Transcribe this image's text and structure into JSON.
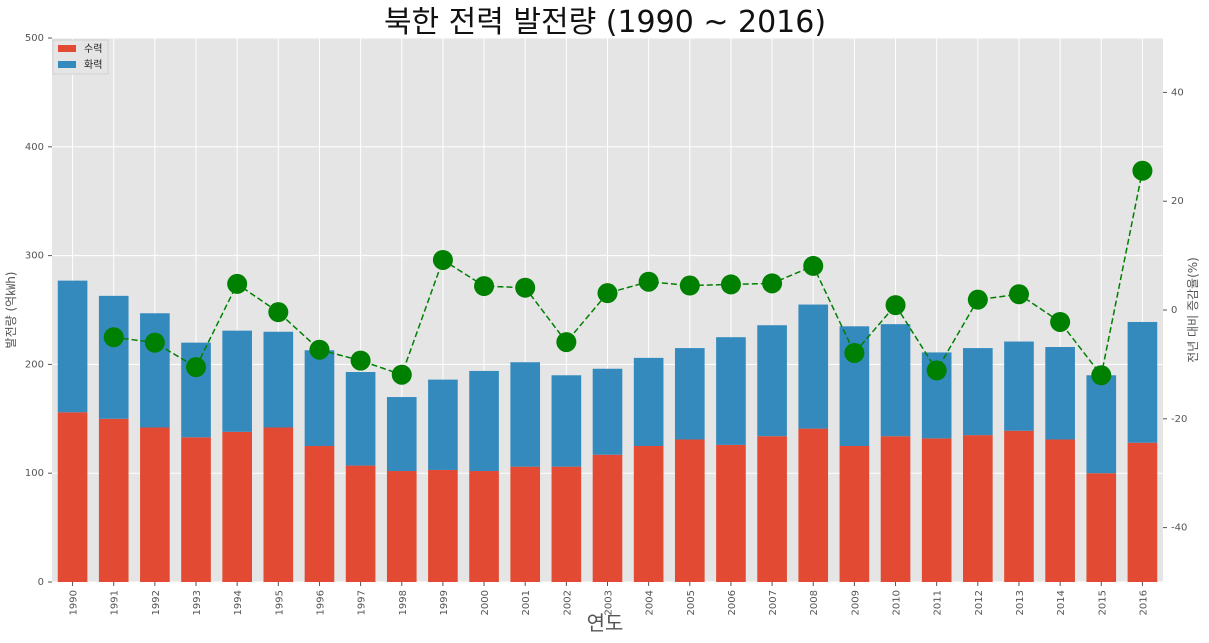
{
  "chart_data": {
    "type": "bar",
    "title": "북한 전력 발전량 (1990 ~ 2016)",
    "xlabel": "연도",
    "ylabel": "발전량 (억㎾h)",
    "y2label": "전년 대비 증감율(%)",
    "categories": [
      "1990",
      "1991",
      "1992",
      "1993",
      "1994",
      "1995",
      "1996",
      "1997",
      "1998",
      "1999",
      "2000",
      "2001",
      "2002",
      "2003",
      "2004",
      "2005",
      "2006",
      "2007",
      "2008",
      "2009",
      "2010",
      "2011",
      "2012",
      "2013",
      "2014",
      "2015",
      "2016"
    ],
    "ylim": [
      0,
      500
    ],
    "yticks": [
      0,
      100,
      200,
      300,
      400,
      500
    ],
    "y2lim": [
      -50,
      50
    ],
    "y2ticks": [
      -40,
      -20,
      0,
      20,
      40
    ],
    "stacked": true,
    "grid": true,
    "legend_position": "top-left",
    "series": [
      {
        "name": "수력",
        "color": "#E24A33",
        "values": [
          156,
          150,
          142,
          133,
          138,
          142,
          125,
          107,
          102,
          103,
          102,
          106,
          106,
          117,
          125,
          131,
          126,
          134,
          141,
          125,
          134,
          132,
          135,
          139,
          131,
          100,
          128
        ]
      },
      {
        "name": "화력",
        "color": "#348ABD",
        "values": [
          121,
          113,
          105,
          87,
          93,
          88,
          88,
          86,
          68,
          83,
          92,
          96,
          84,
          79,
          81,
          84,
          99,
          102,
          114,
          110,
          103,
          79,
          80,
          82,
          85,
          90,
          111
        ]
      }
    ],
    "line_series": {
      "name": "전년 대비 증감율(%)",
      "color": "#008000",
      "axis": "right",
      "x": [
        "1991",
        "1992",
        "1993",
        "1994",
        "1995",
        "1996",
        "1997",
        "1998",
        "1999",
        "2000",
        "2001",
        "2002",
        "2003",
        "2004",
        "2005",
        "2006",
        "2007",
        "2008",
        "2009",
        "2010",
        "2011",
        "2012",
        "2013",
        "2014",
        "2015",
        "2016"
      ],
      "values": [
        -5,
        -6,
        -10.5,
        4.8,
        -0.4,
        -7.3,
        -9.3,
        -11.9,
        9.2,
        4.4,
        4.1,
        -5.9,
        3.1,
        5.2,
        4.5,
        4.7,
        4.9,
        8.1,
        -7.9,
        0.9,
        -11.1,
        1.9,
        2.9,
        -2.2,
        -12,
        25.6
      ]
    }
  }
}
